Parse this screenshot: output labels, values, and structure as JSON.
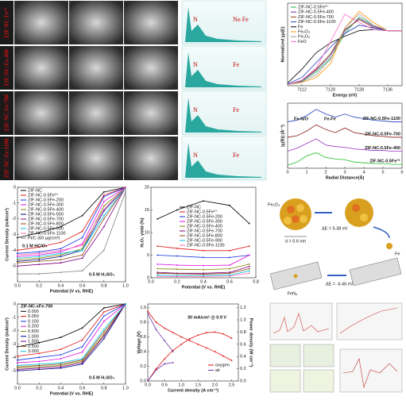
{
  "tem": {
    "labels": [
      "ZIF-NC-Fe³⁺",
      "ZIF-NC-Fe-400",
      "ZIF-NC-Fe-700",
      "ZIF-NC-Fe-1100"
    ]
  },
  "eds": [
    {
      "labels": [
        "N",
        "No Fe"
      ]
    },
    {
      "labels": [
        "N",
        "Fe"
      ]
    },
    {
      "labels": [
        "N",
        "Fe"
      ]
    },
    {
      "labels": [
        "N",
        "Fe"
      ]
    }
  ],
  "scheme": {
    "labels": [
      "Fe₂O₃",
      "ΔE = 5.38 eV",
      "d = 0.6 nm",
      "Fe",
      "ΔE = -6.46 eV",
      "FeN₄"
    ]
  },
  "chart_data": [
    {
      "type": "line",
      "xlabel": "Energy (eV)",
      "ylabel": "Normalized χμ(E)",
      "x": [
        7108,
        7112,
        7116,
        7120,
        7124,
        7128,
        7132,
        7136,
        7140
      ],
      "xlim": [
        7108,
        7140
      ],
      "xticks": [
        7112,
        7120,
        7128,
        7136
      ],
      "ylim": [
        0,
        1.5
      ],
      "series": [
        {
          "name": "ZIF-NC-0.5Fe³⁺",
          "color": "#22b14c",
          "values": [
            0.02,
            0.08,
            0.25,
            0.5,
            0.95,
            1.25,
            1.1,
            1.0,
            1.0
          ]
        },
        {
          "name": "ZIF-NC-0.5Fe-400",
          "color": "#7030a0",
          "values": [
            0.02,
            0.09,
            0.28,
            0.55,
            1.0,
            1.22,
            1.08,
            1.0,
            1.0
          ]
        },
        {
          "name": "ZIF-NC-0.5Fe-700",
          "color": "#8b4513",
          "values": [
            0.02,
            0.1,
            0.3,
            0.58,
            1.02,
            1.2,
            1.06,
            1.0,
            1.0
          ]
        },
        {
          "name": "ZIF-NC-0.5Fe-1100",
          "color": "#1f3fbf",
          "values": [
            0.03,
            0.15,
            0.42,
            0.7,
            0.95,
            1.1,
            1.05,
            1.0,
            1.0
          ]
        },
        {
          "name": "Fe",
          "color": "#000000",
          "values": [
            0.05,
            0.3,
            0.6,
            0.78,
            0.9,
            1.0,
            1.02,
            1.0,
            1.0
          ]
        },
        {
          "name": "Fe₂O₃",
          "color": "#ff8c00",
          "values": [
            0.02,
            0.06,
            0.15,
            0.4,
            1.05,
            1.35,
            1.15,
            1.0,
            1.0
          ]
        },
        {
          "name": "Fe₃O₄",
          "color": "#999999",
          "values": [
            0.02,
            0.07,
            0.2,
            0.48,
            1.05,
            1.3,
            1.1,
            1.0,
            1.0
          ]
        },
        {
          "name": "FeO",
          "color": "#ff66cc",
          "values": [
            0.02,
            0.1,
            0.32,
            0.8,
            1.3,
            1.15,
            1.02,
            1.0,
            1.0
          ]
        }
      ]
    },
    {
      "type": "line",
      "xlabel": "Radial Distance(Å)",
      "ylabel": "|χ(R)| (Å⁻³)",
      "annotations": [
        "Fe-N/O",
        "Fe-Fe"
      ],
      "x": [
        0,
        0.5,
        1,
        1.5,
        2,
        2.5,
        3,
        3.5,
        4,
        4.5,
        5,
        5.5,
        6
      ],
      "xlim": [
        0,
        6
      ],
      "xticks": [
        0,
        1,
        2,
        3,
        4,
        5,
        6
      ],
      "ylim": [
        0,
        4.2
      ],
      "series": [
        {
          "name": "ZIF-NC-0.5Fe-1100",
          "color": "#1f3fbf",
          "values": [
            3.0,
            3.1,
            3.4,
            3.8,
            3.5,
            3.3,
            3.5,
            3.3,
            3.2,
            3.1,
            3.05,
            3.0,
            3.0
          ]
        },
        {
          "name": "ZIF-NC-0.5Fe-700",
          "color": "#8b1a1a",
          "values": [
            2.0,
            2.1,
            2.4,
            2.8,
            2.5,
            2.3,
            2.6,
            2.3,
            2.2,
            2.1,
            2.05,
            2.0,
            2.0
          ]
        },
        {
          "name": "ZIF-NC-0.5Fe-400",
          "color": "#9b30c0",
          "values": [
            1.1,
            1.3,
            1.6,
            1.9,
            1.5,
            1.4,
            1.35,
            1.25,
            1.2,
            1.15,
            1.15,
            1.1,
            1.1
          ]
        },
        {
          "name": "ZIF-NC-0.5Fe³⁺",
          "color": "#22c02c",
          "values": [
            0.2,
            0.4,
            0.8,
            1.0,
            0.7,
            0.6,
            0.55,
            0.4,
            0.35,
            0.3,
            0.3,
            0.25,
            0.25
          ]
        }
      ]
    },
    {
      "type": "line",
      "xlabel": "Potential (V vs. RHE)",
      "ylabel": "Current Density (mA/cm²)",
      "annotations": [
        "0.1 M HClO₄",
        "0.5 M H₂SO₄"
      ],
      "x": [
        0,
        0.2,
        0.4,
        0.6,
        0.8,
        1.0
      ],
      "xlim": [
        0,
        1.0
      ],
      "xticks": [
        {
          "value": 0,
          "label": "0.0"
        },
        0.2,
        0.4,
        0.6,
        0.8,
        {
          "value": 1,
          "label": "1.0"
        }
      ],
      "ylim": [
        -6,
        0
      ],
      "yticks": [
        -5,
        -4,
        -3,
        -2,
        -1,
        0
      ],
      "series": [
        {
          "name": "ZIF-NC",
          "color": "#000000",
          "values": [
            -3.2,
            -2.9,
            -2.5,
            -1.8,
            -0.3,
            0
          ]
        },
        {
          "name": "ZIF-NC-0.5Fe³⁺",
          "color": "#e01010",
          "values": [
            -4.0,
            -3.8,
            -3.5,
            -2.8,
            -0.5,
            0
          ]
        },
        {
          "name": "ZIF-NC-0.5Fe-200",
          "color": "#1030e0",
          "values": [
            -4.2,
            -4.1,
            -3.9,
            -3.2,
            -0.6,
            0
          ]
        },
        {
          "name": "ZIF-NC-0.5Fe-300",
          "color": "#e010e0",
          "values": [
            -4.4,
            -4.3,
            -4.1,
            -3.6,
            -0.9,
            0
          ]
        },
        {
          "name": "ZIF-NC-0.5Fe-400",
          "color": "#808000",
          "values": [
            -4.6,
            -4.5,
            -4.3,
            -3.9,
            -1.2,
            0
          ]
        },
        {
          "name": "ZIF-NC-0.5Fe-500",
          "color": "#000080",
          "values": [
            -4.7,
            -4.6,
            -4.4,
            -4.0,
            -1.5,
            0
          ]
        },
        {
          "name": "ZIF-NC-0.5Fe-700",
          "color": "#800080",
          "values": [
            -5.0,
            -4.9,
            -4.8,
            -4.5,
            -2.5,
            0
          ]
        },
        {
          "name": "ZIF-NC-0.5Fe-800",
          "color": "#8b4513",
          "values": [
            -4.8,
            -4.7,
            -4.6,
            -4.3,
            -2.0,
            0
          ]
        },
        {
          "name": "ZIF-NC-0.5Fe-900",
          "color": "#00c0e0",
          "values": [
            -4.5,
            -4.4,
            -4.2,
            -4.0,
            -1.8,
            0
          ]
        },
        {
          "name": "ZIF-NC-0.5Fe-1100",
          "color": "#ff69b4",
          "values": [
            -4.3,
            -4.2,
            -4.0,
            -3.7,
            -1.4,
            0
          ]
        },
        {
          "name": "Pt/C (60 µg/cm²)",
          "color": "#808080",
          "values": [
            -5.5,
            -5.5,
            -5.4,
            -5.3,
            -4.0,
            -0.3
          ]
        }
      ]
    },
    {
      "type": "line",
      "xlabel": "Potential (V vs. RHE)",
      "ylabel": "H₂O₂ yield (%)",
      "x": [
        0.05,
        0.2,
        0.4,
        0.6,
        0.75
      ],
      "xlim": [
        0,
        0.8
      ],
      "xticks": [
        {
          "value": 0,
          "label": "0.0"
        },
        0.2,
        0.4,
        0.6,
        0.8
      ],
      "ylim": [
        0,
        20
      ],
      "yticks": [
        0,
        5,
        10,
        15,
        20
      ],
      "series": [
        {
          "name": "ZIF-NC",
          "color": "#000000",
          "values": [
            13,
            15,
            17,
            16,
            12
          ]
        },
        {
          "name": "ZIF-NC-0.5Fe³⁺",
          "color": "#e01010",
          "values": [
            7,
            6.5,
            6,
            6,
            7
          ]
        },
        {
          "name": "ZIF-NC-0.5Fe-200",
          "color": "#1030e0",
          "values": [
            5,
            4.8,
            4.5,
            4.5,
            5
          ]
        },
        {
          "name": "ZIF-NC-0.5Fe-300",
          "color": "#e010e0",
          "values": [
            3,
            2.8,
            2.7,
            2.8,
            5
          ]
        },
        {
          "name": "ZIF-NC-0.5Fe-400",
          "color": "#808000",
          "values": [
            2,
            1.9,
            1.8,
            2,
            3
          ]
        },
        {
          "name": "ZIF-NC-0.5Fe-700",
          "color": "#800080",
          "values": [
            1.2,
            1,
            1,
            1.2,
            2.5
          ]
        },
        {
          "name": "ZIF-NC-0.5Fe-800",
          "color": "#8b4513",
          "values": [
            1,
            0.9,
            0.8,
            1,
            2
          ]
        },
        {
          "name": "ZIF-NC-0.5Fe-900",
          "color": "#00c0e0",
          "values": [
            0.6,
            0.5,
            0.5,
            0.6,
            1.5
          ]
        },
        {
          "name": "ZIF-NC-0.5Fe-1100",
          "color": "#ff69b4",
          "values": [
            0.3,
            0.3,
            0.3,
            0.4,
            1
          ]
        }
      ]
    },
    {
      "type": "line",
      "legend_title": "ZIF-NC-xFe-700",
      "xlabel": "Potential (V vs. RHE)",
      "ylabel": "Current Density (mA/cm²)",
      "annotations": [
        "0.5 M H₂SO₄"
      ],
      "x": [
        0,
        0.2,
        0.4,
        0.6,
        0.8,
        1.0
      ],
      "xlim": [
        0,
        1.0
      ],
      "xticks": [
        {
          "value": 0,
          "label": "0.0"
        },
        0.2,
        0.4,
        0.6,
        0.8,
        {
          "value": 1,
          "label": "1.0"
        }
      ],
      "ylim": [
        -6,
        0
      ],
      "yticks": [
        -5,
        -4,
        -3,
        -2,
        -1,
        0
      ],
      "series": [
        {
          "name": "0.000",
          "color": "#000000",
          "values": [
            -3.2,
            -2.9,
            -2.5,
            -1.8,
            -0.3,
            0
          ]
        },
        {
          "name": "0.050",
          "color": "#e01010",
          "values": [
            -3.9,
            -3.7,
            -3.4,
            -2.7,
            -0.6,
            0
          ]
        },
        {
          "name": "0.100",
          "color": "#1030e0",
          "values": [
            -4.2,
            -4.0,
            -3.8,
            -3.2,
            -0.9,
            0
          ]
        },
        {
          "name": "0.200",
          "color": "#e010e0",
          "values": [
            -4.4,
            -4.3,
            -4.1,
            -3.6,
            -1.3,
            0
          ]
        },
        {
          "name": "0.500",
          "color": "#808000",
          "values": [
            -4.8,
            -4.7,
            -4.6,
            -4.3,
            -2.3,
            0
          ]
        },
        {
          "name": "1.000",
          "color": "#000080",
          "values": [
            -5.0,
            -4.9,
            -4.8,
            -4.5,
            -2.6,
            0
          ]
        },
        {
          "name": "1.500",
          "color": "#800080",
          "values": [
            -4.9,
            -4.8,
            -4.7,
            -4.4,
            -2.4,
            0
          ]
        },
        {
          "name": "2.500",
          "color": "#8b4513",
          "values": [
            -4.7,
            -4.6,
            -4.5,
            -4.2,
            -2.1,
            0
          ]
        },
        {
          "name": "3.000",
          "color": "#00c0e0",
          "values": [
            -4.6,
            -4.5,
            -4.4,
            -4.1,
            -1.9,
            0
          ]
        }
      ]
    },
    {
      "type": "line",
      "xlabel": "Current density (A cm⁻²)",
      "ylabel": "Voltage (V)",
      "y2label": "Power density (W cm⁻²)",
      "annotations": [
        "30 mA/cm² @ 0.9 V"
      ],
      "x": [
        0,
        0.25,
        0.5,
        0.75,
        1,
        1.25,
        1.5,
        1.75,
        2,
        2.25,
        2.5
      ],
      "xlim": [
        0,
        2.7
      ],
      "xticks": [
        {
          "value": 0,
          "label": "0.0"
        },
        0.5,
        {
          "value": 1,
          "label": "1.0"
        },
        1.5,
        {
          "value": 2,
          "label": "2.0"
        },
        2.5
      ],
      "ylim": [
        0,
        1.05
      ],
      "yticks": [
        {
          "value": 0,
          "label": "0.0"
        },
        0.2,
        0.4,
        0.6,
        0.8,
        {
          "value": 1,
          "label": "1.0"
        }
      ],
      "y2lim": [
        0,
        1.26
      ],
      "y2ticks": [
        {
          "value": 0,
          "label": "0.0"
        },
        0.2,
        0.4,
        0.6,
        0.8,
        {
          "value": 1,
          "label": "1.0"
        },
        1.2
      ],
      "series": [
        {
          "name": "oxygen",
          "color": "#e01010",
          "values": [
            0.95,
            0.8,
            0.72,
            0.66,
            0.6,
            0.55,
            0.5,
            0.45,
            0.4,
            0.34,
            0.28
          ],
          "power_values": [
            0,
            0.2,
            0.36,
            0.5,
            0.6,
            0.69,
            0.75,
            0.79,
            0.8,
            0.77,
            0.7
          ]
        },
        {
          "name": "air",
          "color": "#7030a0",
          "values": [
            0.92,
            0.7,
            0.55,
            0.4,
            null,
            null,
            null,
            null,
            null,
            null,
            null
          ],
          "power_values": [
            0,
            0.18,
            0.28,
            0.3,
            null,
            null,
            null,
            null,
            null,
            null,
            null
          ]
        }
      ]
    }
  ]
}
